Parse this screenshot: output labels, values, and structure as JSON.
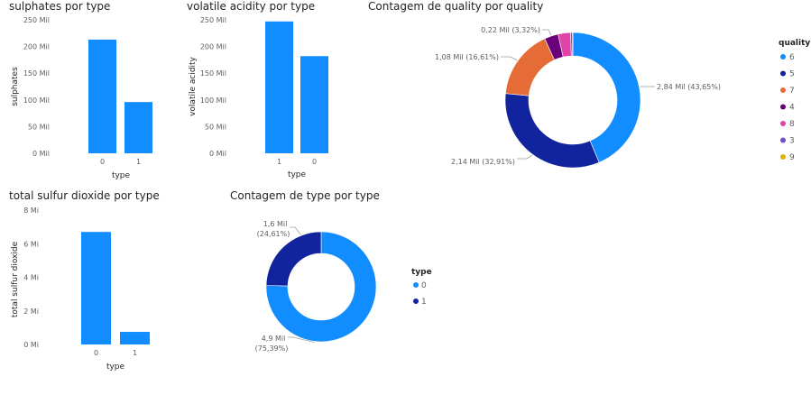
{
  "colors": {
    "6": "#118DFF",
    "5": "#12239E",
    "7": "#E66C37",
    "4": "#6B007B",
    "8": "#E044A7",
    "3": "#744EC2",
    "9": "#D9B300",
    "bar": "#118DFF",
    "type_0": "#118DFF",
    "type_1": "#12239E"
  },
  "chart_data": [
    {
      "id": "sulphates",
      "type": "bar",
      "title": "sulphates por type",
      "xlabel": "type",
      "ylabel": "sulphates",
      "categories": [
        "0",
        "1"
      ],
      "values": [
        213,
        96
      ],
      "ylim": [
        0,
        250
      ],
      "yticks": [
        {
          "v": 0,
          "label": "0 Mil"
        },
        {
          "v": 50,
          "label": "50 Mil"
        },
        {
          "v": 100,
          "label": "100 Mil"
        },
        {
          "v": 150,
          "label": "150 Mil"
        },
        {
          "v": 200,
          "label": "200 Mil"
        },
        {
          "v": 250,
          "label": "250 Mil"
        }
      ],
      "grid": false
    },
    {
      "id": "volatile",
      "type": "bar",
      "title": "volatile acidity por type",
      "xlabel": "type",
      "ylabel": "volatile acidity",
      "categories": [
        "1",
        "0"
      ],
      "values": [
        247,
        182
      ],
      "ylim": [
        0,
        250
      ],
      "yticks": [
        {
          "v": 0,
          "label": "0 Mil"
        },
        {
          "v": 50,
          "label": "50 Mil"
        },
        {
          "v": 100,
          "label": "100 Mil"
        },
        {
          "v": 150,
          "label": "150 Mil"
        },
        {
          "v": 200,
          "label": "200 Mil"
        },
        {
          "v": 250,
          "label": "250 Mil"
        }
      ],
      "grid": false
    },
    {
      "id": "quality",
      "type": "pie",
      "title": "Contagem de quality por quality",
      "legend_title": "quality",
      "legend_position": "right",
      "slices": [
        {
          "label": "6",
          "value": 43.65,
          "data_label": "2,84 Mil (43,65%)"
        },
        {
          "label": "5",
          "value": 32.91,
          "data_label": "2,14 Mil (32,91%)"
        },
        {
          "label": "7",
          "value": 16.61,
          "data_label": "1,08 Mil (16,61%)"
        },
        {
          "label": "4",
          "value": 3.32,
          "data_label": "0,22 Mil (3,32%)"
        },
        {
          "label": "8",
          "value": 2.97,
          "data_label": ""
        },
        {
          "label": "3",
          "value": 0.46,
          "data_label": ""
        },
        {
          "label": "9",
          "value": 0.08,
          "data_label": ""
        }
      ]
    },
    {
      "id": "sulfur",
      "type": "bar",
      "title": "total sulfur dioxide por type",
      "xlabel": "type",
      "ylabel": "total sulfur dioxide",
      "categories": [
        "0",
        "1"
      ],
      "values": [
        6.7,
        0.75
      ],
      "ylim": [
        0,
        8
      ],
      "yticks": [
        {
          "v": 0,
          "label": "0 Mi"
        },
        {
          "v": 2,
          "label": "2 Mi"
        },
        {
          "v": 4,
          "label": "4 Mi"
        },
        {
          "v": 6,
          "label": "6 Mi"
        },
        {
          "v": 8,
          "label": "8 Mi"
        }
      ],
      "grid": false
    },
    {
      "id": "typecount",
      "type": "pie",
      "title": "Contagem de type por type",
      "legend_title": "type",
      "legend_position": "right",
      "slices": [
        {
          "label": "0",
          "value": 75.39,
          "data_label_1": "4,9 Mil",
          "data_label_2": "(75,39%)"
        },
        {
          "label": "1",
          "value": 24.61,
          "data_label_1": "1,6 Mil",
          "data_label_2": "(24,61%)"
        }
      ]
    }
  ]
}
